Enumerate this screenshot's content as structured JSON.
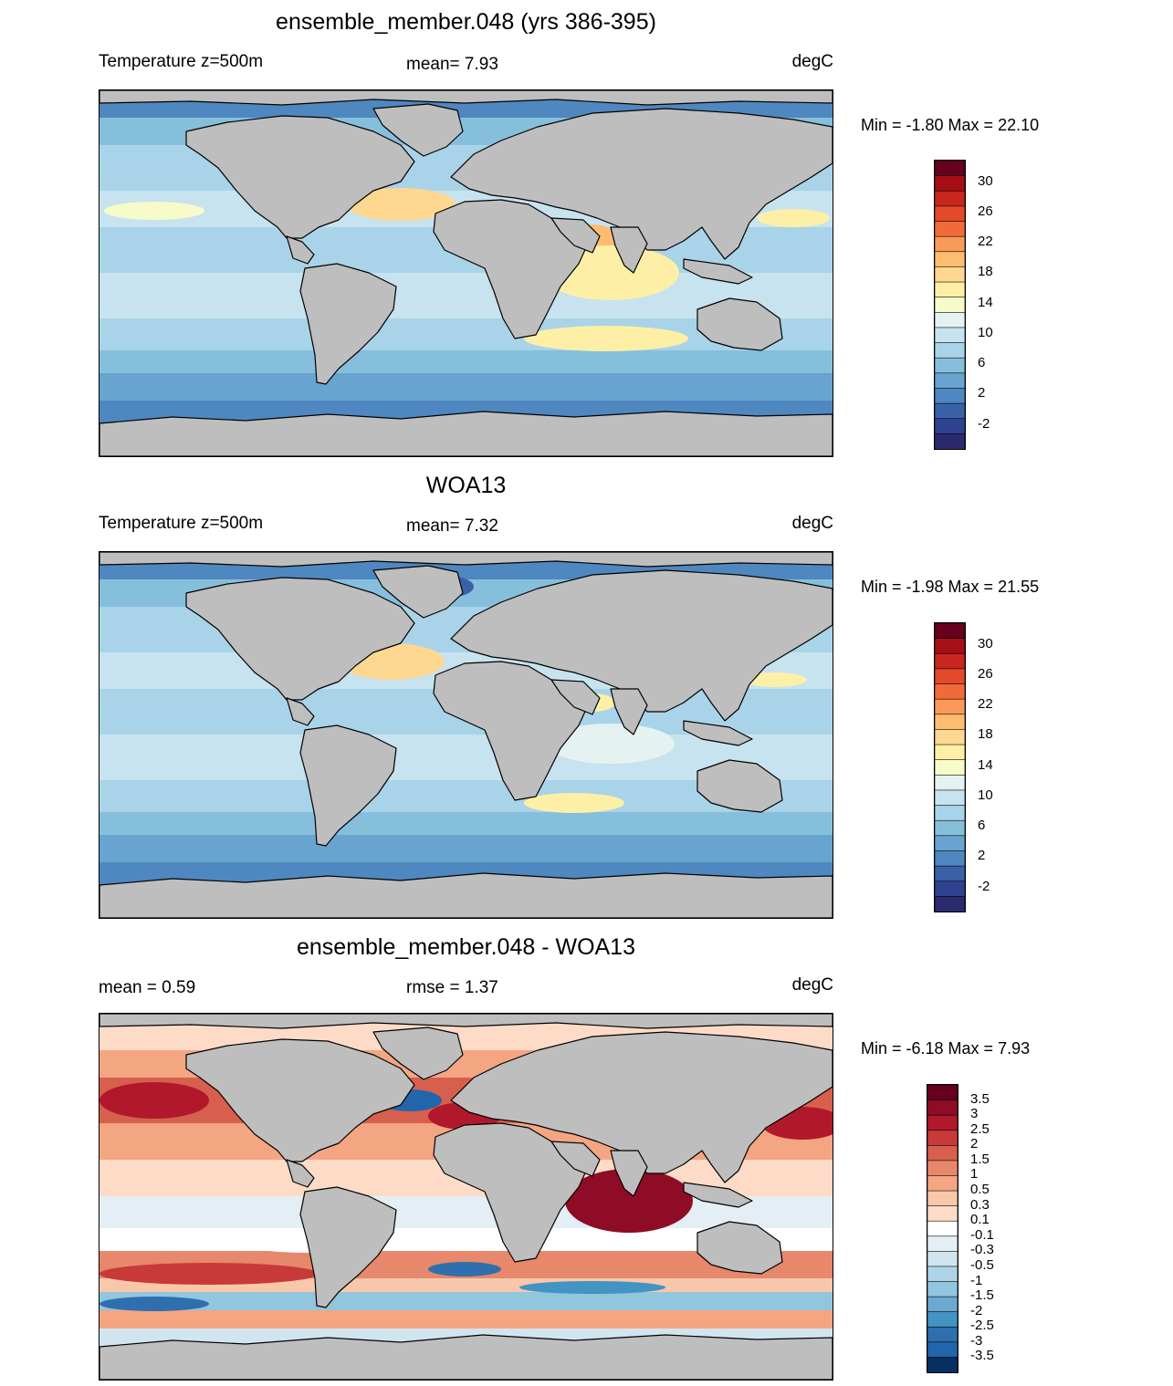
{
  "panels": [
    {
      "id": "model",
      "title": "ensemble_member.048 (yrs 386-395)",
      "left_label": "Temperature z=500m",
      "center_label": "mean=   7.93",
      "right_label": "degC",
      "minmax": "Min =  -1.80 Max =  22.10",
      "field": "model"
    },
    {
      "id": "obs",
      "title": "WOA13",
      "left_label": "Temperature z=500m",
      "center_label": "mean=   7.32",
      "right_label": "degC",
      "minmax": "Min =  -1.98 Max =  21.55",
      "field": "obs"
    },
    {
      "id": "diff",
      "title": "ensemble_member.048 - WOA13",
      "left_label": "mean =   0.59",
      "center_label": "rmse =   1.37",
      "right_label": "degC",
      "minmax": "Min =  -6.18 Max =   7.93",
      "field": "diff"
    }
  ],
  "colorbars": {
    "temperature": {
      "tick_labels": [
        "30",
        "26",
        "22",
        "18",
        "14",
        "10",
        "6",
        "2",
        "-2"
      ],
      "colors_top_to_bottom": [
        "#67001f",
        "#a50f15",
        "#c8261e",
        "#e34a2a",
        "#f16b3a",
        "#fa9a58",
        "#fdbd70",
        "#fed890",
        "#fdf0a6",
        "#f7fbc9",
        "#e4f3f1",
        "#c6e3ef",
        "#a9d3e8",
        "#86bfdc",
        "#68a4cf",
        "#4f87c0",
        "#3a61a8",
        "#2f4290",
        "#2b2a6e"
      ]
    },
    "difference": {
      "tick_labels": [
        "3.5",
        "3",
        "2.5",
        "2",
        "1.5",
        "1",
        "0.5",
        "0.3",
        "0.1",
        "-0.1",
        "-0.3",
        "-0.5",
        "-1",
        "-1.5",
        "-2",
        "-2.5",
        "-3",
        "-3.5"
      ],
      "colors_top_to_bottom": [
        "#67001f",
        "#8e0c25",
        "#b2182b",
        "#c83a3a",
        "#d6604d",
        "#e7876b",
        "#f4a582",
        "#f9c7aa",
        "#fddbc7",
        "#ffffff",
        "#e4eef5",
        "#d1e5f0",
        "#b0d4e7",
        "#92c5de",
        "#6aa9d0",
        "#4393c3",
        "#2f6fae",
        "#2166ac",
        "#053061"
      ]
    }
  }
}
